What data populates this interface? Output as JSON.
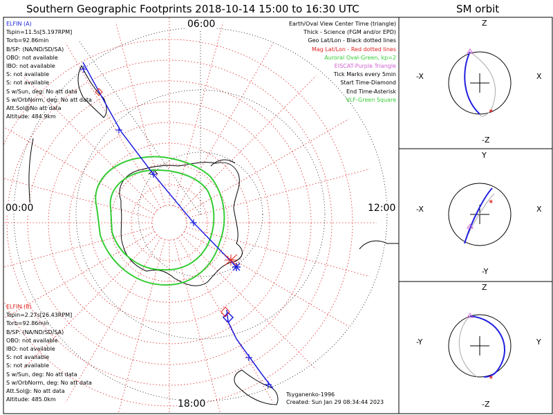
{
  "title": "Southern Geographic Footprints 2018-10-14 15:00 to 16:30 UTC",
  "sm_title": "SM orbit",
  "clock_labels": {
    "top": "06:00",
    "left": "00:00",
    "right": "12:00",
    "bottom": "18:00"
  },
  "elfin_a": {
    "name": "ELFIN (A)",
    "lines": [
      "Tspin=11.5s[5.197RPM]",
      "Torb=92.86min",
      "B/SP: (NA/ND/SD/SA)",
      "OBO: not available",
      "IBO: not available",
      "S: not available",
      "S: not available",
      "S w/Sun, deg: No att data",
      "S w/OrbNorm, deg: No att data",
      "Att.Sol@No att data",
      "Altitude: 484.9km"
    ]
  },
  "elfin_b": {
    "name": "ELFIN (B)",
    "lines": [
      "Tspin=2.27s[26.43RPM]",
      "Torb=92.86min",
      "B/SP: (NA/ND/SD/SA)",
      "OBO: not available",
      "IBO: not available",
      "S: not available",
      "S: not available",
      "S w/Sun, deg: No att data",
      "S w/OrbNorm, deg: No att data",
      "Att.Sol@: No att data",
      "Altitude: 485.0km"
    ]
  },
  "legend": [
    {
      "text": "Earth/Oval View Center Time (triangle)",
      "color": "#000000"
    },
    {
      "text": "Thick - Science (FGM and/or EPD)",
      "color": "#000000"
    },
    {
      "text": "Geo Lat/Lon - Black dotted lines",
      "color": "#000000"
    },
    {
      "text": "Mag Lat/Lon - Red dotted lines",
      "color": "#e02020"
    },
    {
      "text": "Auroral Oval-Green, kp=2",
      "color": "#33cc33"
    },
    {
      "text": "EISCAT-Purple Triangle",
      "color": "#d060d0"
    },
    {
      "text": "Tick Marks every 5min",
      "color": "#000000"
    },
    {
      "text": "Start Time-Diamond",
      "color": "#000000"
    },
    {
      "text": "End Time-Asterisk",
      "color": "#000000"
    },
    {
      "text": "VLF-Green Square",
      "color": "#33cc33"
    }
  ],
  "credits": [
    "Tsyganenko-1996",
    "Created: Sun Jan 29 08:34:44 2023"
  ],
  "panels": [
    {
      "top": "Z",
      "bottom": "-Z",
      "left": "-X",
      "right": "X"
    },
    {
      "top": "Y",
      "bottom": "-Y",
      "left": "-X",
      "right": "X"
    },
    {
      "top": "Z",
      "bottom": "-Z",
      "left": "-Y",
      "right": "Y"
    }
  ],
  "colors": {
    "elfin_a": "#1e1ee0",
    "elfin_b": "#e02020",
    "oval": "#33cc33",
    "geo_grid": "#000000",
    "mag_grid": "#e02020"
  }
}
